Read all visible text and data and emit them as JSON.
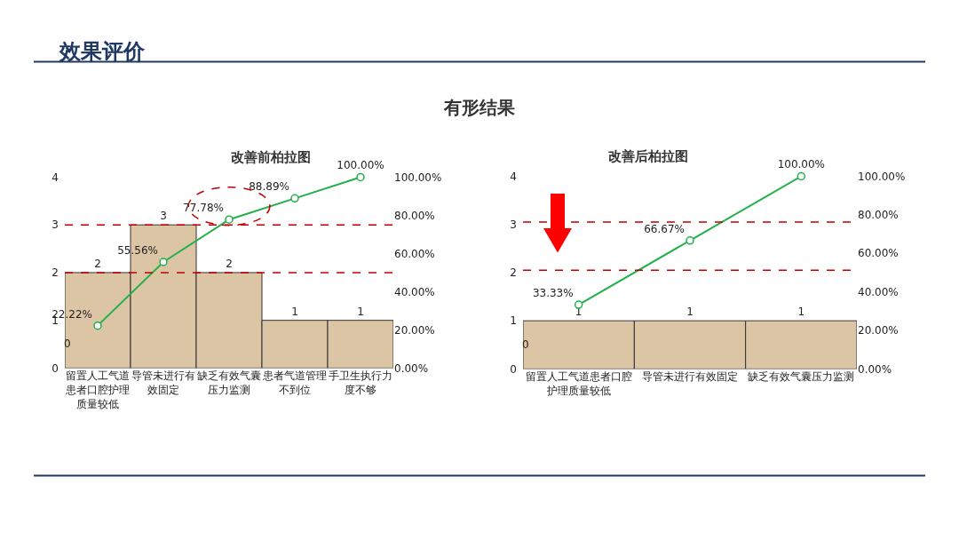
{
  "chart_data": [
    {
      "type": "bar",
      "title": "改善前柏拉图",
      "annotations": [
        "效果评价",
        "有形结果",
        "0"
      ],
      "categories": [
        "留置人工气道患者口腔护理质量较低",
        "导管未进行有效固定",
        "缺乏有效气囊压力监测",
        "患者气道管理不到位",
        "手卫生执行力度不够"
      ],
      "ylim": [
        0,
        4
      ],
      "yticks": [
        0,
        1,
        2,
        3,
        4
      ],
      "y2lim": [
        0,
        100
      ],
      "y2ticks": [
        {
          "value": 0,
          "label": "0.00%"
        },
        {
          "value": 20,
          "label": "20.00%"
        },
        {
          "value": 40,
          "label": "40.00%"
        },
        {
          "value": 60,
          "label": "60.00%"
        },
        {
          "value": 80,
          "label": "80.00%"
        },
        {
          "value": 100,
          "label": "100.00%"
        }
      ],
      "series": [
        {
          "color": "#dcc5a5",
          "values": [
            2,
            3,
            2,
            1,
            1
          ],
          "value_labels": [
            "2",
            "3",
            "2",
            "1",
            "1"
          ]
        },
        {
          "type": "line",
          "axis": "y2",
          "color": "#22b04b",
          "values": [
            22.22,
            55.56,
            77.78,
            88.89,
            100
          ],
          "value_labels": [
            "22.22%",
            "55.56%",
            "77.78%",
            "88.89%",
            "100.00%"
          ]
        }
      ],
      "marker": "circle",
      "ref_lines": [
        {
          "axis": "y",
          "value": 3,
          "color": "#c00000",
          "line_style": "dashed"
        },
        {
          "axis": "y",
          "value": 2,
          "color": "#c00000",
          "line_style": "dashed"
        }
      ]
    },
    {
      "type": "bar",
      "title": "改善后柏拉图",
      "annotations": [
        "0"
      ],
      "categories": [
        "留置人工气道患者口腔护理质量较低",
        "导管未进行有效固定",
        "缺乏有效气囊压力监测"
      ],
      "ylim": [
        0,
        4
      ],
      "yticks": [
        0,
        1,
        2,
        3,
        4
      ],
      "y2lim": [
        0,
        100
      ],
      "y2ticks": [
        {
          "value": 0,
          "label": "0.00%"
        },
        {
          "value": 20,
          "label": "20.00%"
        },
        {
          "value": 40,
          "label": "40.00%"
        },
        {
          "value": 60,
          "label": "60.00%"
        },
        {
          "value": 80,
          "label": "80.00%"
        },
        {
          "value": 100,
          "label": "100.00%"
        }
      ],
      "series": [
        {
          "color": "#dcc5a5",
          "values": [
            1,
            1,
            1
          ],
          "value_labels": [
            "1",
            "1",
            "1"
          ]
        },
        {
          "type": "line",
          "axis": "y2",
          "color": "#22b04b",
          "values": [
            33.33,
            66.67,
            100
          ],
          "value_labels": [
            "33.33%",
            "66.67%",
            "100.00%"
          ]
        }
      ],
      "marker": "circle",
      "ref_lines": [
        {
          "axis": "y",
          "value": 3.05,
          "color": "#c00000",
          "line_style": "dashed"
        },
        {
          "axis": "y",
          "value": 2.05,
          "color": "#c00000",
          "line_style": "dashed"
        }
      ]
    }
  ]
}
